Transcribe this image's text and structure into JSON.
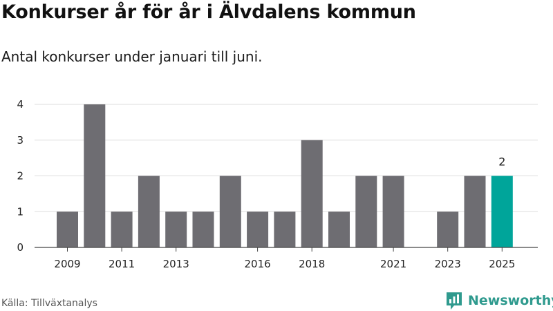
{
  "title": "Konkurser år för år i Älvdalens kommun",
  "subtitle": "Antal konkurser under januari till juni.",
  "source": "Källa: Tillväxtanalys",
  "brand": {
    "name": "Newsworthy",
    "icon": "newsworthy-logo-icon",
    "color": "#2f9a8e"
  },
  "chart_data": {
    "type": "bar",
    "categories": [
      "2009",
      "2010",
      "2011",
      "2012",
      "2013",
      "2014",
      "2015",
      "2016",
      "2017",
      "2018",
      "2019",
      "2020",
      "2021",
      "2022",
      "2023",
      "2024",
      "2025"
    ],
    "values": [
      1,
      4,
      1,
      2,
      1,
      1,
      2,
      1,
      1,
      3,
      1,
      2,
      2,
      0,
      1,
      2,
      2
    ],
    "x_tick_labels": [
      "2009",
      "2011",
      "2013",
      "2016",
      "2018",
      "2021",
      "2023",
      "2025"
    ],
    "y_ticks": [
      0,
      1,
      2,
      3,
      4
    ],
    "ylim": [
      0,
      4
    ],
    "highlight": {
      "category": "2025",
      "label": "2"
    },
    "colors": {
      "bar": "#6e6d72",
      "highlight": "#00a59a",
      "grid": "#dddddd",
      "axis": "#444444"
    },
    "grid": true
  }
}
